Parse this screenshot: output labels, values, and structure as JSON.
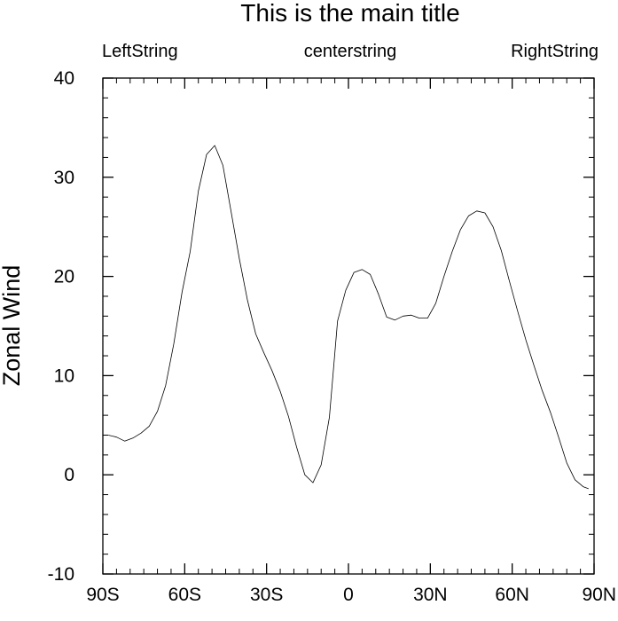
{
  "chart_data": {
    "type": "line",
    "title": "This is the main title",
    "left_string": "LeftString",
    "center_string": "centerstring",
    "right_string": "RightString",
    "xlabel": "",
    "ylabel": "Zonal Wind",
    "xlim": [
      -90,
      90
    ],
    "ylim": [
      -10,
      40
    ],
    "x_ticks": [
      {
        "value": -90,
        "label": "90S"
      },
      {
        "value": -60,
        "label": "60S"
      },
      {
        "value": -30,
        "label": "30S"
      },
      {
        "value": 0,
        "label": "0"
      },
      {
        "value": 30,
        "label": "30N"
      },
      {
        "value": 60,
        "label": "60N"
      },
      {
        "value": 90,
        "label": "90N"
      }
    ],
    "y_ticks": [
      {
        "value": -10,
        "label": "-10"
      },
      {
        "value": 0,
        "label": "0"
      },
      {
        "value": 10,
        "label": "10"
      },
      {
        "value": 20,
        "label": "20"
      },
      {
        "value": 30,
        "label": "30"
      },
      {
        "value": 40,
        "label": "40"
      }
    ],
    "x_minor_step": 5,
    "y_minor_step": 2,
    "grid": false,
    "series": [
      {
        "x": [
          -88,
          -85,
          -82,
          -79,
          -76,
          -73,
          -70,
          -67,
          -64,
          -61,
          -58,
          -55,
          -52,
          -49,
          -46,
          -43,
          -40,
          -37,
          -34,
          -31,
          -28,
          -25,
          -22,
          -19,
          -16,
          -13,
          -10,
          -7,
          -4,
          -1,
          2,
          5,
          8,
          11,
          14,
          17,
          20,
          23,
          26,
          29,
          32,
          35,
          38,
          41,
          44,
          47,
          50,
          53,
          56,
          59,
          62,
          65,
          68,
          71,
          74,
          77,
          80,
          83,
          86,
          88
        ],
        "y": [
          4.0,
          3.8,
          3.4,
          3.7,
          4.2,
          4.9,
          6.4,
          9.0,
          13.2,
          18.4,
          22.5,
          28.6,
          32.3,
          33.2,
          31.2,
          26.5,
          21.8,
          17.6,
          14.2,
          12.3,
          10.5,
          8.4,
          5.9,
          2.8,
          0.0,
          -0.8,
          1.0,
          5.8,
          15.5,
          18.6,
          20.4,
          20.7,
          20.2,
          18.2,
          15.9,
          15.6,
          16.0,
          16.1,
          15.8,
          15.8,
          17.3,
          20.0,
          22.5,
          24.7,
          26.1,
          26.6,
          26.4,
          25.0,
          22.6,
          19.5,
          16.5,
          13.6,
          11.0,
          8.5,
          6.3,
          3.8,
          1.2,
          -0.5,
          -1.2,
          -1.4
        ]
      }
    ],
    "colors": {
      "line": "#000000",
      "axes": "#000000",
      "background": "#ffffff"
    }
  }
}
